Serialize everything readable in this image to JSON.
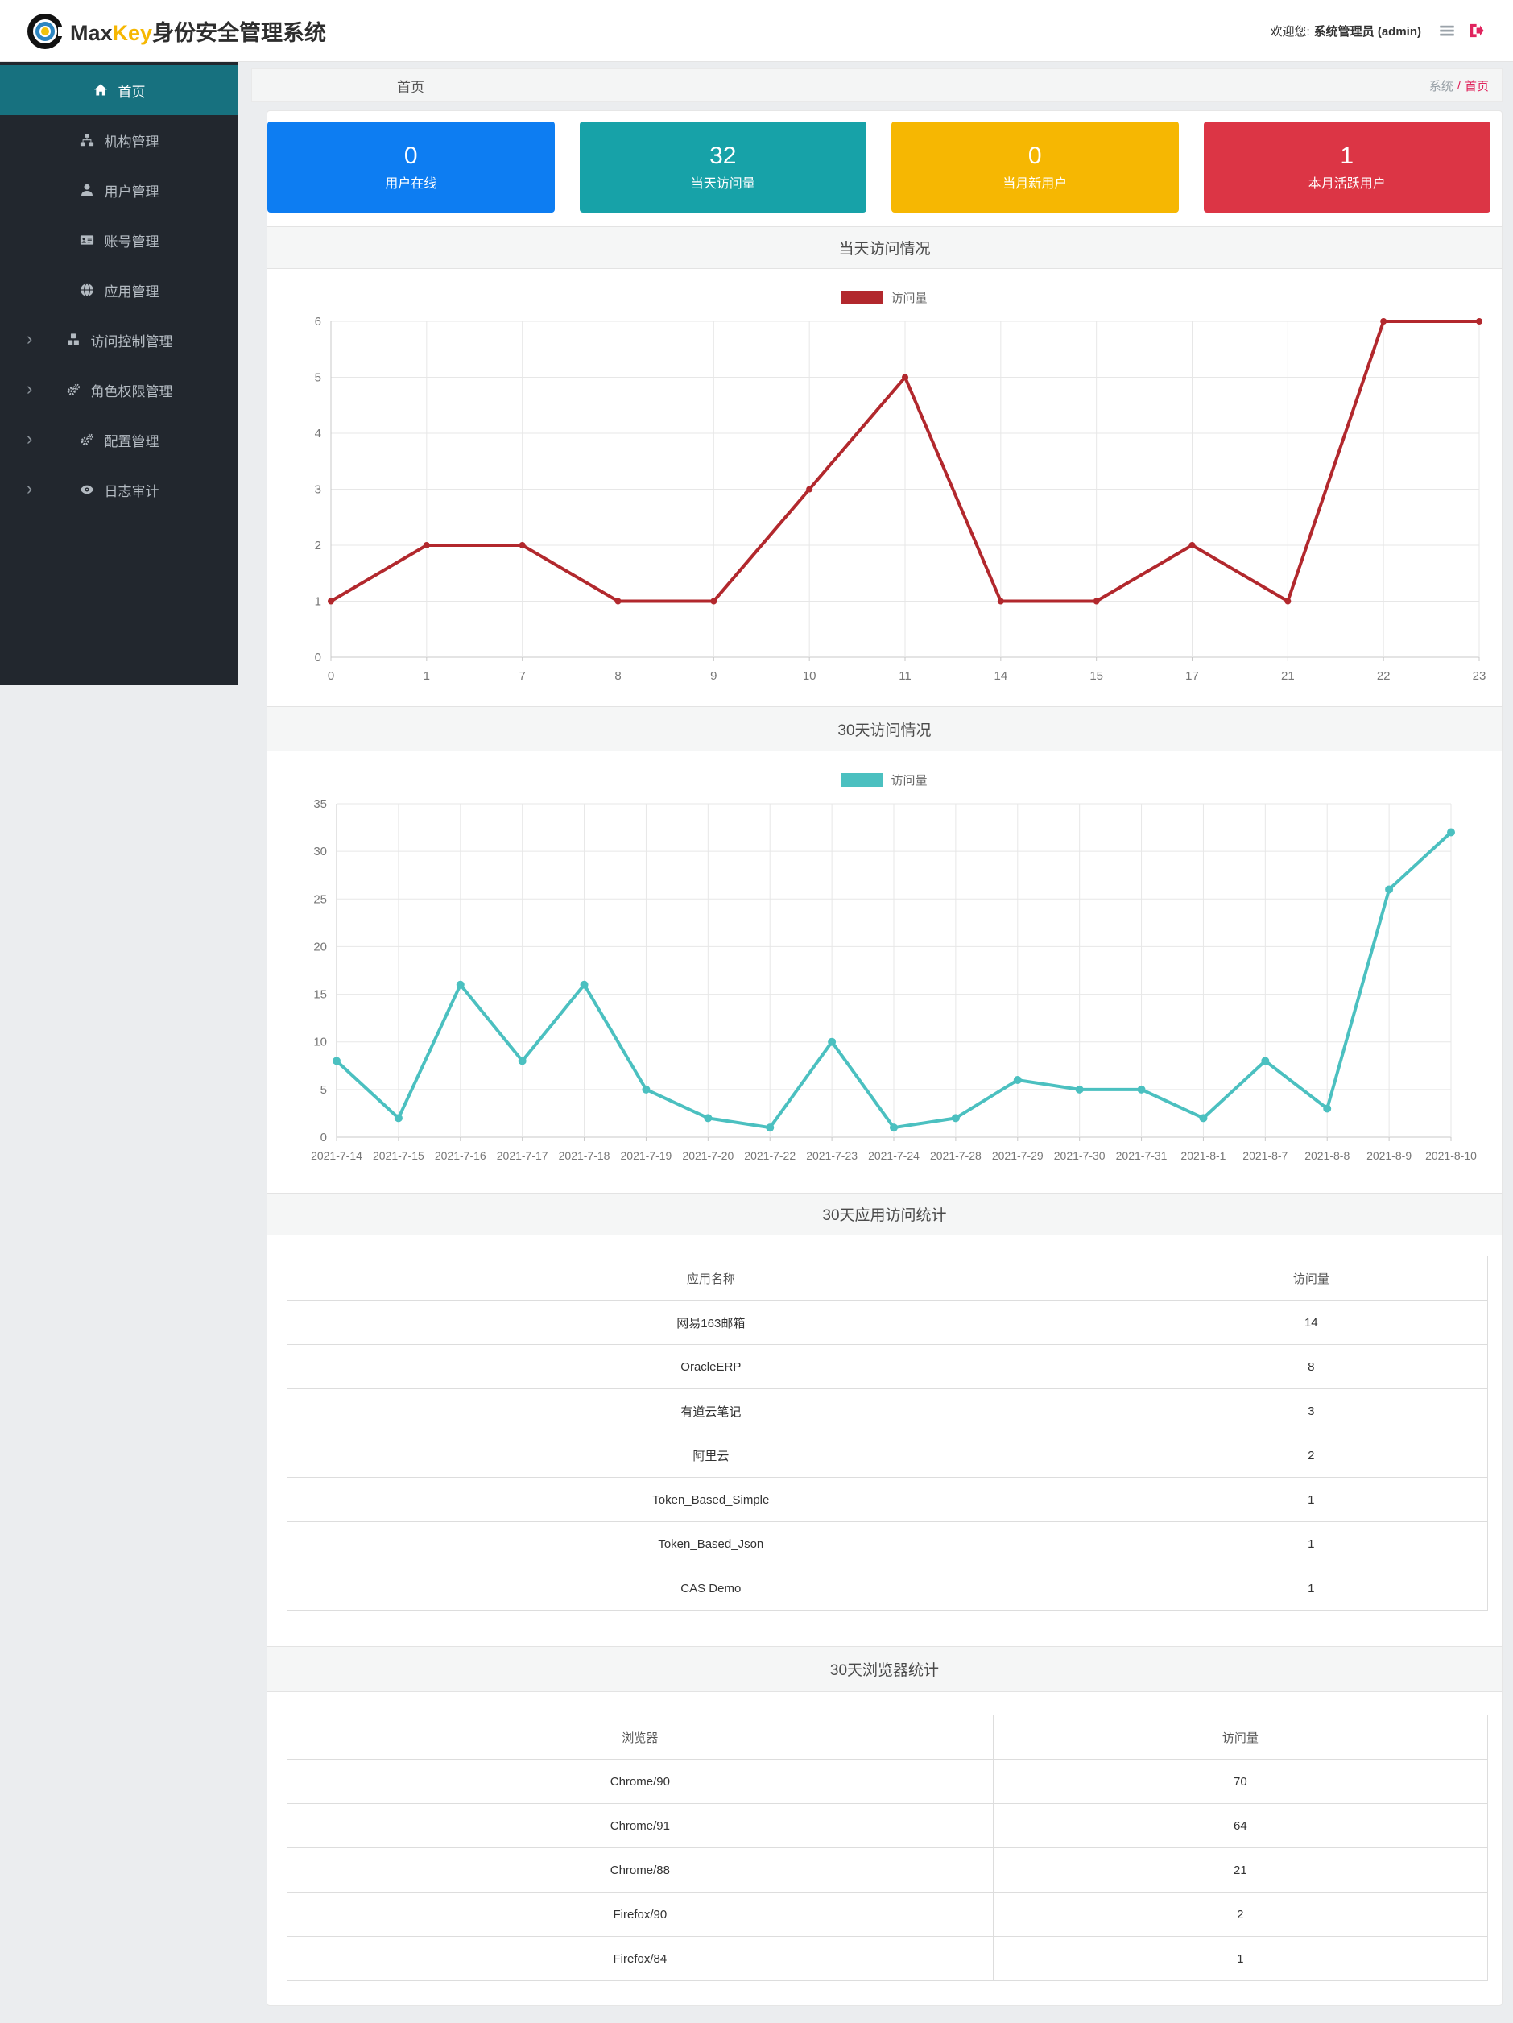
{
  "header": {
    "logo_max": "Max",
    "logo_key": "Key",
    "logo_suffix": "身份安全管理系统",
    "welcome_prefix": "欢迎您:",
    "welcome_user": "系统管理员 (admin)"
  },
  "sidebar": {
    "items": [
      {
        "label": "首页",
        "icon": "home-icon",
        "active": true,
        "has_children": false
      },
      {
        "label": "机构管理",
        "icon": "sitemap-icon",
        "active": false,
        "has_children": false
      },
      {
        "label": "用户管理",
        "icon": "user-icon",
        "active": false,
        "has_children": false
      },
      {
        "label": "账号管理",
        "icon": "id-card-icon",
        "active": false,
        "has_children": false
      },
      {
        "label": "应用管理",
        "icon": "globe-icon",
        "active": false,
        "has_children": false
      },
      {
        "label": "访问控制管理",
        "icon": "cubes-icon",
        "active": false,
        "has_children": true
      },
      {
        "label": "角色权限管理",
        "icon": "gears-icon",
        "active": false,
        "has_children": true
      },
      {
        "label": "配置管理",
        "icon": "gears-icon",
        "active": false,
        "has_children": true
      },
      {
        "label": "日志审计",
        "icon": "eye-icon",
        "active": false,
        "has_children": true
      }
    ]
  },
  "breadcrumb": {
    "title": "首页",
    "path_root": "系统",
    "separator": "/",
    "path_current": "首页"
  },
  "stat_cards": [
    {
      "value": "0",
      "label": "用户在线",
      "color": "#0d7df2"
    },
    {
      "value": "32",
      "label": "当天访问量",
      "color": "#17a2a8"
    },
    {
      "value": "0",
      "label": "当月新用户",
      "color": "#f6b702"
    },
    {
      "value": "1",
      "label": "本月活跃用户",
      "color": "#dc3545"
    }
  ],
  "chart_data": [
    {
      "type": "line",
      "title": "当天访问情况",
      "series_label": "访问量",
      "color": "#b2282d",
      "categories": [
        "0",
        "1",
        "7",
        "8",
        "9",
        "10",
        "11",
        "14",
        "15",
        "17",
        "21",
        "22",
        "23"
      ],
      "values": [
        1,
        2,
        2,
        1,
        1,
        3,
        5,
        1,
        1,
        2,
        1,
        6,
        6
      ],
      "xlabel": "",
      "ylabel": "",
      "ylim": [
        0,
        6
      ],
      "ytick": 1,
      "grid": true,
      "legend_position": "top-center"
    },
    {
      "type": "line",
      "title": "30天访问情况",
      "series_label": "访问量",
      "color": "#4bc0c0",
      "categories": [
        "2021-7-14",
        "2021-7-15",
        "2021-7-16",
        "2021-7-17",
        "2021-7-18",
        "2021-7-19",
        "2021-7-20",
        "2021-7-22",
        "2021-7-23",
        "2021-7-24",
        "2021-7-28",
        "2021-7-29",
        "2021-7-30",
        "2021-7-31",
        "2021-8-1",
        "2021-8-7",
        "2021-8-8",
        "2021-8-9",
        "2021-8-10"
      ],
      "values": [
        8,
        2,
        16,
        8,
        16,
        5,
        2,
        1,
        10,
        1,
        2,
        6,
        5,
        5,
        2,
        8,
        3,
        26,
        32
      ],
      "xlabel": "",
      "ylabel": "",
      "ylim": [
        0,
        35
      ],
      "ytick": 5,
      "grid": true,
      "legend_position": "top-center"
    }
  ],
  "tables": [
    {
      "title": "30天应用访问统计",
      "headers": [
        "应用名称",
        "访问量"
      ],
      "rows": [
        [
          "网易163邮箱",
          "14"
        ],
        [
          "OracleERP",
          "8"
        ],
        [
          "有道云笔记",
          "3"
        ],
        [
          "阿里云",
          "2"
        ],
        [
          "Token_Based_Simple",
          "1"
        ],
        [
          "Token_Based_Json",
          "1"
        ],
        [
          "CAS Demo",
          "1"
        ]
      ]
    },
    {
      "title": "30天浏览器统计",
      "headers": [
        "浏览器",
        "访问量"
      ],
      "rows": [
        [
          "Chrome/90",
          "70"
        ],
        [
          "Chrome/91",
          "64"
        ],
        [
          "Chrome/88",
          "21"
        ],
        [
          "Firefox/90",
          "2"
        ],
        [
          "Firefox/84",
          "1"
        ]
      ]
    }
  ]
}
